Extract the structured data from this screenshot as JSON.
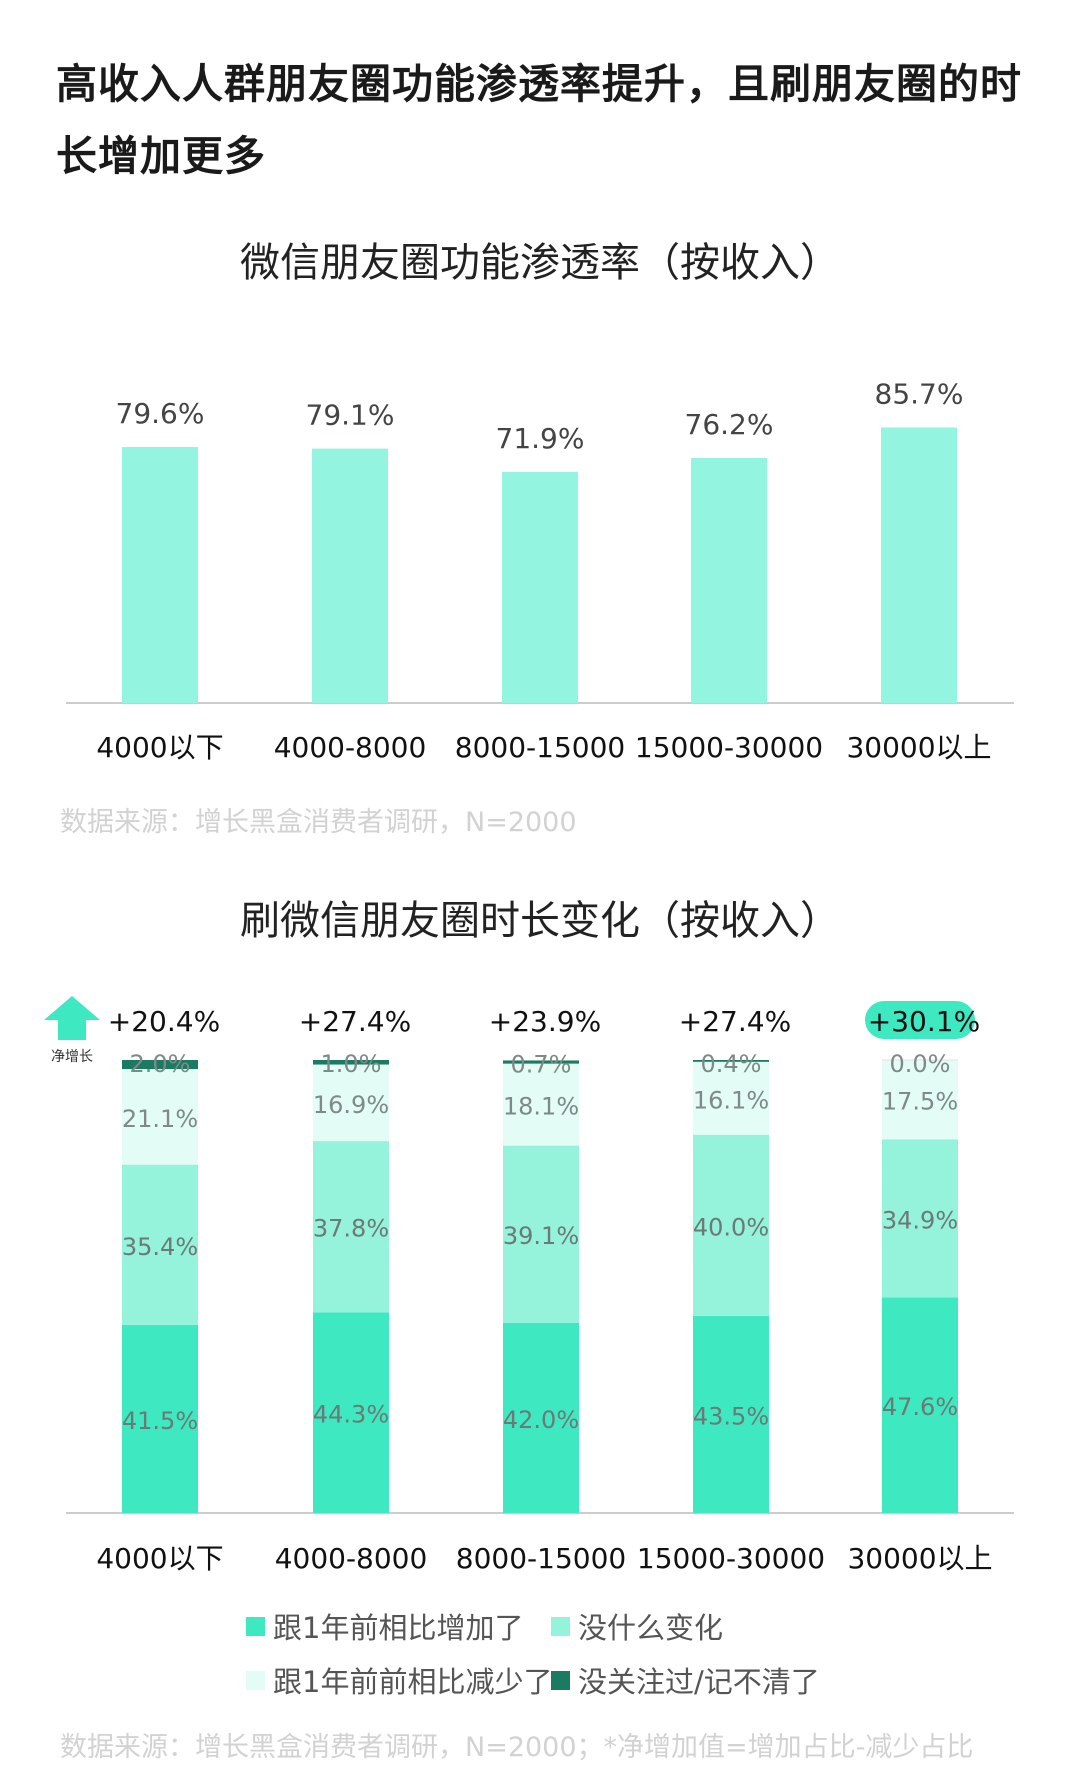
{
  "page_title": "高收入人群朋友圈功能渗透率提升，且刷朋友圈的时长增加更多",
  "colors": {
    "bar1": "#93f5e0",
    "increased": "#3ee9c2",
    "no_change": "#95f3dc",
    "decreased": "#e3fcf5",
    "unclear": "#1a7a62",
    "highlight_badge": "#3ee9c2",
    "axis": "#cccccc",
    "source_text": "#d2d2d2"
  },
  "chart_data": [
    {
      "type": "bar",
      "title": "微信朋友圈功能渗透率（按收入）",
      "categories": [
        "4000以下",
        "4000-8000",
        "8000-15000",
        "15000-30000",
        "30000以上"
      ],
      "values": [
        79.6,
        79.1,
        71.9,
        76.2,
        85.7
      ],
      "value_labels": [
        "79.6%",
        "79.1%",
        "71.9%",
        "76.2%",
        "85.7%"
      ],
      "ylim": [
        0,
        100
      ],
      "grid": false,
      "source": "数据来源：增长黑盒消费者调研，N=2000"
    },
    {
      "type": "bar",
      "stacked": true,
      "title": "刷微信朋友圈时长变化（按收入）",
      "categories": [
        "4000以下",
        "4000-8000",
        "8000-15000",
        "15000-30000",
        "30000以上"
      ],
      "series": [
        {
          "name": "跟1年前相比增加了",
          "key": "increased",
          "values": [
            41.5,
            44.3,
            42.0,
            43.5,
            47.6
          ],
          "labels": [
            "41.5%",
            "44.3%",
            "42.0%",
            "43.5%",
            "47.6%"
          ]
        },
        {
          "name": "没什么变化",
          "key": "no_change",
          "values": [
            35.4,
            37.8,
            39.1,
            40.0,
            34.9
          ],
          "labels": [
            "35.4%",
            "37.8%",
            "39.1%",
            "40.0%",
            "34.9%"
          ]
        },
        {
          "name": "跟1年前前相比减少了",
          "key": "decreased",
          "values": [
            21.1,
            16.9,
            18.1,
            16.1,
            17.5
          ],
          "labels": [
            "21.1%",
            "16.9%",
            "18.1%",
            "16.1%",
            "17.5%"
          ]
        },
        {
          "name": "没关注过/记不清了",
          "key": "unclear",
          "values": [
            2.0,
            1.0,
            0.7,
            0.4,
            0.0
          ],
          "labels": [
            "2.0%",
            "1.0%",
            "0.7%",
            "0.4%",
            "0.0%"
          ]
        }
      ],
      "net_growth_label": "净增长",
      "net_growth_values": [
        20.4,
        27.4,
        23.9,
        27.4,
        30.1
      ],
      "net_growth_labels": [
        "+20.4%",
        "+27.4%",
        "+23.9%",
        "+27.4%",
        "+30.1%"
      ],
      "highlighted_category": "30000以上",
      "legend_position": "bottom",
      "source": "数据来源：增长黑盒消费者调研，N=2000；*净增加值=增加占比-减少占比"
    }
  ]
}
